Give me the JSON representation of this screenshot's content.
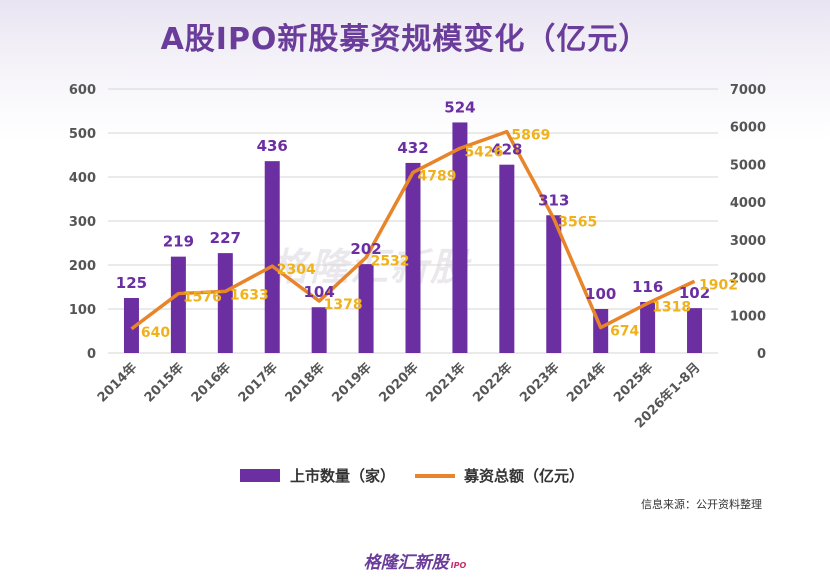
{
  "title": "A股IPO新股募资规模变化（亿元）",
  "watermark": "格隆汇新股",
  "source_note": "信息来源：公开资料整理",
  "brand": {
    "name": "格隆汇新股",
    "sub": "IPO"
  },
  "colors": {
    "bar": "#6b2fa2",
    "line": "#e8842a",
    "bar_label": "#6b2fa2",
    "line_label": "#f0b21b",
    "title": "#6b3d9a"
  },
  "chart_data": {
    "type": "bar",
    "categories": [
      "2014年",
      "2015年",
      "2016年",
      "2017年",
      "2018年",
      "2019年",
      "2020年",
      "2021年",
      "2022年",
      "2023年",
      "2024年",
      "2025年",
      "2026年1-8月"
    ],
    "series": [
      {
        "name": "上市数量（家）",
        "type": "bar",
        "axis": "left",
        "values": [
          125,
          219,
          227,
          436,
          104,
          202,
          432,
          524,
          428,
          313,
          100,
          116,
          102
        ]
      },
      {
        "name": "募资总额（亿元）",
        "type": "line",
        "axis": "right",
        "values": [
          640,
          1576,
          1633,
          2304,
          1378,
          2532,
          4789,
          5426,
          5869,
          3565,
          674,
          1318,
          1902
        ]
      }
    ],
    "y_left": {
      "ticks": [
        "0",
        "100",
        "200",
        "300",
        "400",
        "500",
        "600"
      ],
      "min": 0,
      "max": 600
    },
    "y_right": {
      "ticks": [
        "0",
        "1000",
        "2000",
        "3000",
        "4000",
        "5000",
        "6000",
        "7000"
      ],
      "min": 0,
      "max": 7000
    },
    "grid": true,
    "legend_position": "bottom"
  }
}
